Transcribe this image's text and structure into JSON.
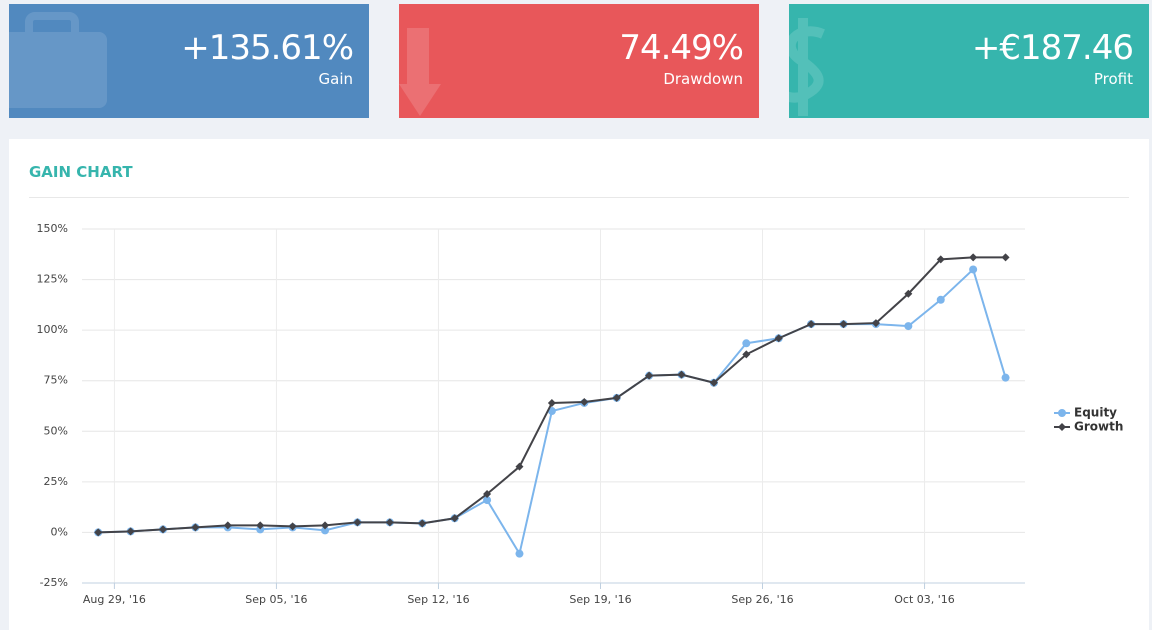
{
  "cards": [
    {
      "value": "+135.61%",
      "label": "Gain"
    },
    {
      "value": "74.49%",
      "label": "Drawdown"
    },
    {
      "value": "+€187.46",
      "label": "Profit"
    }
  ],
  "panel_title": "GAIN CHART",
  "chart_data": {
    "type": "line",
    "x": [
      0,
      1,
      2,
      3,
      4,
      5,
      6,
      7,
      8,
      9,
      10,
      11,
      12,
      13,
      14,
      15,
      16,
      17,
      18,
      19,
      20,
      21,
      22,
      23,
      24,
      25,
      26,
      27,
      28
    ],
    "xlim": [
      -0.5,
      28.6
    ],
    "xticks": [
      {
        "value": 0.5,
        "label": "Aug 29, '16"
      },
      {
        "value": 5.5,
        "label": "Sep 05, '16"
      },
      {
        "value": 10.5,
        "label": "Sep 12, '16"
      },
      {
        "value": 15.5,
        "label": "Sep 19, '16"
      },
      {
        "value": 20.5,
        "label": "Sep 26, '16"
      },
      {
        "value": 25.5,
        "label": "Oct 03, '16"
      }
    ],
    "ylim": [
      -25,
      150
    ],
    "yticks": [
      {
        "value": -25,
        "label": "-25%"
      },
      {
        "value": 0,
        "label": "0%"
      },
      {
        "value": 25,
        "label": "25%"
      },
      {
        "value": 50,
        "label": "50%"
      },
      {
        "value": 75,
        "label": "75%"
      },
      {
        "value": 100,
        "label": "100%"
      },
      {
        "value": 125,
        "label": "125%"
      },
      {
        "value": 150,
        "label": "150%"
      }
    ],
    "grid": true,
    "legend": "right",
    "series": [
      {
        "name": "Equity",
        "color": "#7cb5ec",
        "marker": "circle",
        "values": [
          0,
          0.5,
          1.5,
          2.5,
          2.5,
          1.5,
          2.5,
          1,
          5,
          5,
          4.5,
          7,
          16,
          -10.5,
          60,
          64,
          66.5,
          77.5,
          78,
          74,
          93.5,
          96,
          103,
          103,
          103,
          102,
          115,
          130,
          76.5
        ]
      },
      {
        "name": "Growth",
        "color": "#434348",
        "marker": "diamond",
        "values": [
          0,
          0.5,
          1.5,
          2.5,
          3.5,
          3.5,
          3,
          3.5,
          5,
          5,
          4.5,
          7,
          19,
          32.5,
          64,
          64.5,
          66.5,
          77.5,
          78,
          74,
          88,
          96,
          103,
          103,
          103.5,
          118,
          135,
          136,
          136
        ]
      }
    ]
  }
}
